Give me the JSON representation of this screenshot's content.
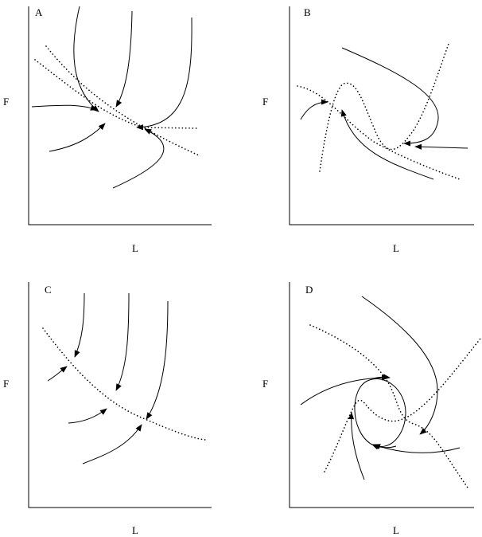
{
  "panels": [
    {
      "letter": "A",
      "ylabel": "F",
      "xlabel": "L"
    },
    {
      "letter": "B",
      "ylabel": "F",
      "xlabel": "L"
    },
    {
      "letter": "C",
      "ylabel": "F",
      "xlabel": "L"
    },
    {
      "letter": "D",
      "ylabel": "F",
      "xlabel": "L"
    }
  ]
}
